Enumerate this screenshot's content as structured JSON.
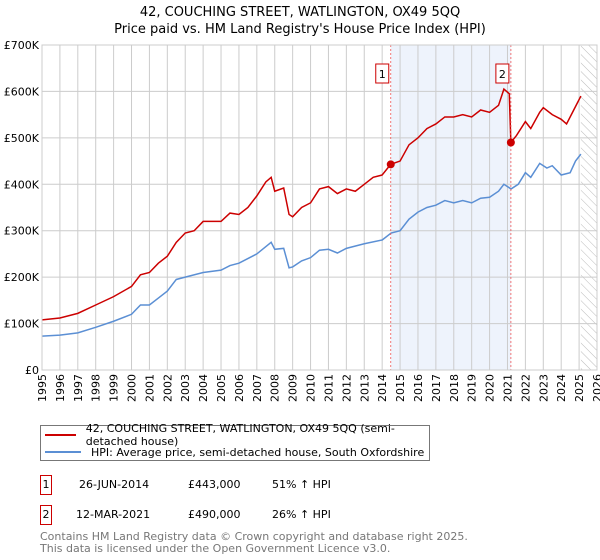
{
  "chart_data": {
    "type": "line",
    "title": "42, COUCHING STREET, WATLINGTON, OX49 5QQ",
    "subtitle": "Price paid vs. HM Land Registry's House Price Index (HPI)",
    "xlim": [
      1995,
      2026
    ],
    "ylim": [
      0,
      700000
    ],
    "x_ticks": [
      "1995",
      "1996",
      "1997",
      "1998",
      "1999",
      "2000",
      "2001",
      "2002",
      "2003",
      "2004",
      "2005",
      "2006",
      "2007",
      "2008",
      "2009",
      "2010",
      "2011",
      "2012",
      "2013",
      "2014",
      "2015",
      "2016",
      "2017",
      "2018",
      "2019",
      "2020",
      "2021",
      "2022",
      "2023",
      "2024",
      "2025",
      "2026"
    ],
    "y_ticks": [
      {
        "v": 0,
        "l": "£0"
      },
      {
        "v": 100000,
        "l": "£100K"
      },
      {
        "v": 200000,
        "l": "£200K"
      },
      {
        "v": 300000,
        "l": "£300K"
      },
      {
        "v": 400000,
        "l": "£400K"
      },
      {
        "v": 500000,
        "l": "£500K"
      },
      {
        "v": 600000,
        "l": "£600K"
      },
      {
        "v": 700000,
        "l": "£700K"
      }
    ],
    "grid": true,
    "shaded_range": [
      2014.48,
      2021.19
    ],
    "forecast_hatch_from": 2025.1,
    "series": [
      {
        "name": "42, COUCHING STREET, WATLINGTON, OX49 5QQ (semi-detached house)",
        "color": "#cc0000",
        "points": [
          [
            1995,
            108
          ],
          [
            1996,
            112
          ],
          [
            1997,
            122
          ],
          [
            1998,
            140
          ],
          [
            1999,
            158
          ],
          [
            2000,
            180
          ],
          [
            2000.5,
            205
          ],
          [
            2001,
            210
          ],
          [
            2001.5,
            230
          ],
          [
            2002,
            245
          ],
          [
            2002.5,
            275
          ],
          [
            2003,
            295
          ],
          [
            2003.5,
            300
          ],
          [
            2004,
            320
          ],
          [
            2005,
            320
          ],
          [
            2005.5,
            338
          ],
          [
            2006,
            335
          ],
          [
            2006.5,
            350
          ],
          [
            2007,
            375
          ],
          [
            2007.5,
            405
          ],
          [
            2007.8,
            415
          ],
          [
            2008,
            385
          ],
          [
            2008.5,
            392
          ],
          [
            2008.8,
            335
          ],
          [
            2009,
            330
          ],
          [
            2009.5,
            350
          ],
          [
            2010,
            360
          ],
          [
            2010.5,
            390
          ],
          [
            2011,
            395
          ],
          [
            2011.5,
            380
          ],
          [
            2012,
            390
          ],
          [
            2012.5,
            385
          ],
          [
            2013,
            400
          ],
          [
            2013.5,
            415
          ],
          [
            2014,
            420
          ],
          [
            2014.48,
            443
          ],
          [
            2015,
            450
          ],
          [
            2015.5,
            485
          ],
          [
            2016,
            500
          ],
          [
            2016.5,
            520
          ],
          [
            2017,
            530
          ],
          [
            2017.5,
            545
          ],
          [
            2018,
            545
          ],
          [
            2018.5,
            550
          ],
          [
            2019,
            545
          ],
          [
            2019.5,
            560
          ],
          [
            2020,
            555
          ],
          [
            2020.5,
            570
          ],
          [
            2020.8,
            605
          ],
          [
            2021.1,
            595
          ],
          [
            2021.19,
            490
          ],
          [
            2021.5,
            505
          ],
          [
            2022,
            535
          ],
          [
            2022.3,
            520
          ],
          [
            2022.8,
            555
          ],
          [
            2023,
            565
          ],
          [
            2023.5,
            550
          ],
          [
            2024,
            540
          ],
          [
            2024.3,
            530
          ],
          [
            2024.7,
            560
          ],
          [
            2025.1,
            590
          ]
        ]
      },
      {
        "name": "HPI: Average price, semi-detached house, South Oxfordshire",
        "color": "#5b8fd4",
        "points": [
          [
            1995,
            73
          ],
          [
            1996,
            75
          ],
          [
            1997,
            80
          ],
          [
            1998,
            92
          ],
          [
            1999,
            105
          ],
          [
            2000,
            120
          ],
          [
            2000.5,
            140
          ],
          [
            2001,
            140
          ],
          [
            2001.5,
            155
          ],
          [
            2002,
            170
          ],
          [
            2002.5,
            195
          ],
          [
            2003,
            200
          ],
          [
            2004,
            210
          ],
          [
            2005,
            215
          ],
          [
            2005.5,
            225
          ],
          [
            2006,
            230
          ],
          [
            2007,
            250
          ],
          [
            2007.8,
            275
          ],
          [
            2008,
            260
          ],
          [
            2008.5,
            262
          ],
          [
            2008.8,
            220
          ],
          [
            2009,
            222
          ],
          [
            2009.5,
            235
          ],
          [
            2010,
            242
          ],
          [
            2010.5,
            258
          ],
          [
            2011,
            260
          ],
          [
            2011.5,
            252
          ],
          [
            2012,
            262
          ],
          [
            2013,
            272
          ],
          [
            2014,
            280
          ],
          [
            2014.5,
            295
          ],
          [
            2015,
            300
          ],
          [
            2015.5,
            325
          ],
          [
            2016,
            340
          ],
          [
            2016.5,
            350
          ],
          [
            2017,
            355
          ],
          [
            2017.5,
            365
          ],
          [
            2018,
            360
          ],
          [
            2018.5,
            365
          ],
          [
            2019,
            360
          ],
          [
            2019.5,
            370
          ],
          [
            2020,
            372
          ],
          [
            2020.5,
            385
          ],
          [
            2020.8,
            400
          ],
          [
            2021.2,
            390
          ],
          [
            2021.6,
            400
          ],
          [
            2022,
            425
          ],
          [
            2022.3,
            415
          ],
          [
            2022.8,
            445
          ],
          [
            2023.2,
            435
          ],
          [
            2023.5,
            440
          ],
          [
            2024,
            420
          ],
          [
            2024.5,
            425
          ],
          [
            2024.8,
            450
          ],
          [
            2025.1,
            465
          ]
        ]
      }
    ],
    "sales": [
      {
        "id": "1",
        "x": 2014.48,
        "value": 443000
      },
      {
        "id": "2",
        "x": 2021.19,
        "value": 490000
      }
    ]
  },
  "legend": {
    "property": "42, COUCHING STREET, WATLINGTON, OX49 5QQ (semi-detached house)",
    "hpi": "HPI: Average price, semi-detached house, South Oxfordshire"
  },
  "transactions": [
    {
      "id": "1",
      "date": "26-JUN-2014",
      "price": "£443,000",
      "hpi": "51% ↑ HPI"
    },
    {
      "id": "2",
      "date": "12-MAR-2021",
      "price": "£490,000",
      "hpi": "26% ↑ HPI"
    }
  ],
  "footer": {
    "line1": "Contains HM Land Registry data © Crown copyright and database right 2025.",
    "line2": "This data is licensed under the Open Government Licence v3.0."
  }
}
